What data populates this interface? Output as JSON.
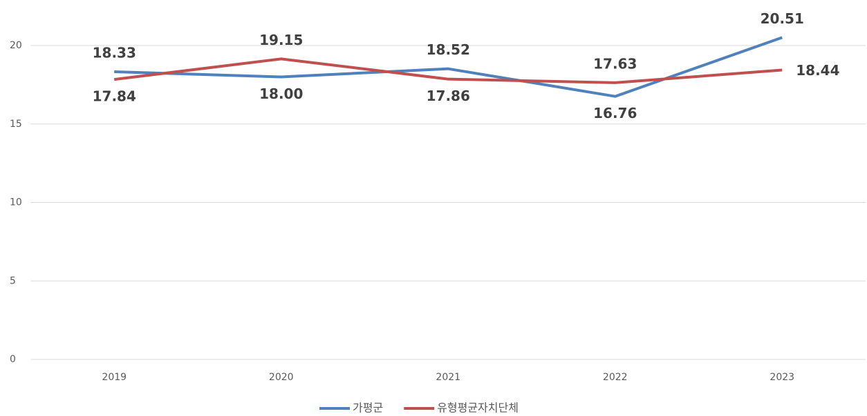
{
  "chart_data": {
    "type": "line",
    "categories": [
      "2019",
      "2020",
      "2021",
      "2022",
      "2023"
    ],
    "series": [
      {
        "name": "가평군",
        "color": "#4f81bd",
        "values": [
          18.33,
          18.0,
          18.52,
          16.76,
          20.51
        ],
        "value_labels": [
          "18.33",
          "18.00",
          "18.52",
          "16.76",
          "20.51"
        ]
      },
      {
        "name": "유형평균자치단체",
        "color": "#c0504d",
        "values": [
          17.84,
          19.15,
          17.86,
          17.63,
          18.44
        ],
        "value_labels": [
          "17.84",
          "19.15",
          "17.86",
          "17.63",
          "18.44"
        ]
      }
    ],
    "ylim": [
      0,
      22
    ],
    "yticks": [
      0,
      5,
      10,
      15,
      20
    ],
    "grid": true,
    "legend": "bottom"
  }
}
